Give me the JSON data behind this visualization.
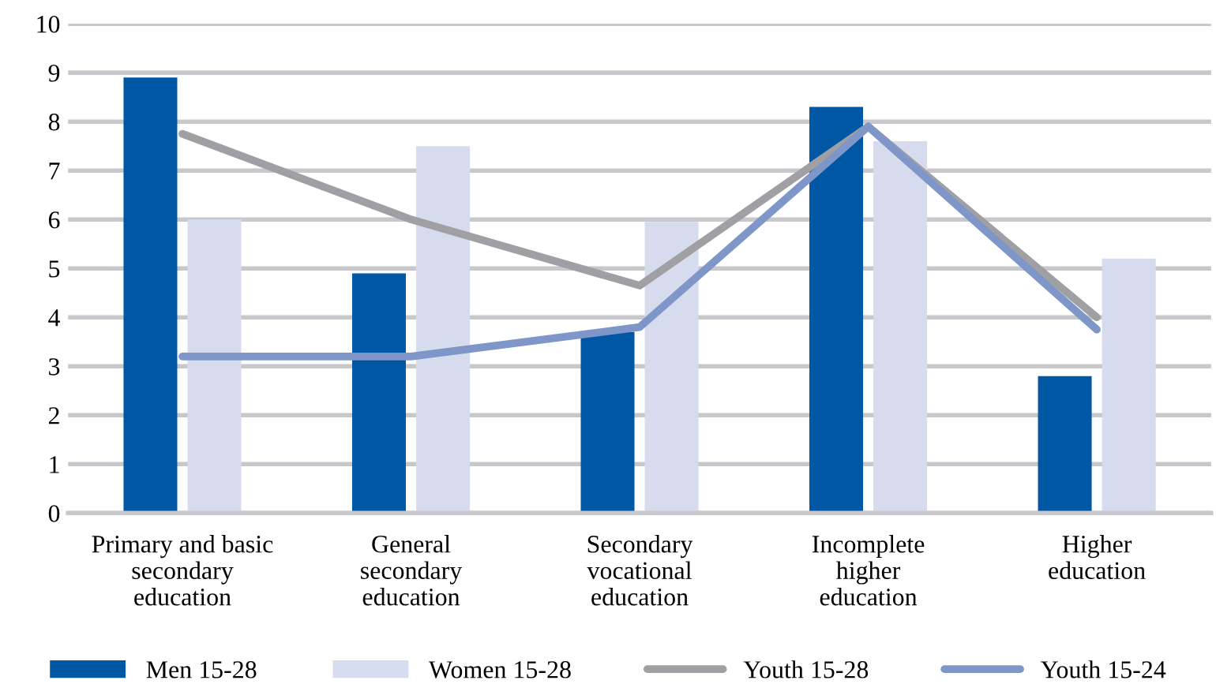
{
  "chart_data": {
    "type": "bar",
    "categories": [
      "Primary and basic\nsecondary\neducation",
      "General\nsecondary\neducation",
      "Secondary\nvocational\neducation",
      "Incomplete\nhigher\neducation",
      "Higher\neducation"
    ],
    "series": [
      {
        "name": "Men 15-28",
        "color": "#0057a4",
        "values": [
          8.9,
          4.9,
          3.7,
          8.3,
          2.8
        ]
      },
      {
        "name": "Women 15-28",
        "color": "#d6dcee",
        "values": [
          6.0,
          7.5,
          5.95,
          7.6,
          5.2
        ]
      },
      {
        "name": "Youth 15-28",
        "type": "line",
        "color": "#a0a0a4",
        "values": [
          7.75,
          6.0,
          4.65,
          7.9,
          4.0
        ]
      },
      {
        "name": "Youth 15-24",
        "type": "line",
        "color": "#7f96c8",
        "values": [
          3.2,
          3.2,
          3.8,
          7.9,
          3.75
        ]
      }
    ],
    "ylim": [
      0,
      10
    ],
    "yticks": [
      0,
      1,
      2,
      3,
      4,
      5,
      6,
      7,
      8,
      9,
      10
    ],
    "grid": "y",
    "legend": "bottom",
    "line_style": "solid",
    "marker": "none"
  }
}
